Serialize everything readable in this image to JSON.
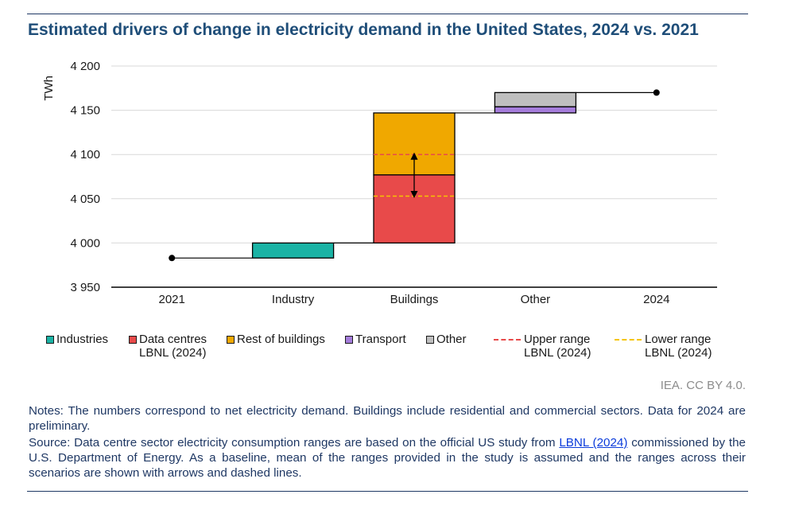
{
  "title": "Estimated drivers of change in electricity demand in the United States, 2024 vs. 2021",
  "colors": {
    "industries": "#1bb3a5",
    "data_centres": "#e84a4a",
    "rest_of_buildings": "#f0a800",
    "transport": "#a57ddb",
    "other": "#bfbfbf",
    "upper_range": "#e84a4a",
    "lower_range": "#f5c400",
    "title": "#1f4e79"
  },
  "chart_data": {
    "type": "bar",
    "subtype": "waterfall",
    "title": "Estimated drivers of change in electricity demand in the United States, 2024 vs. 2021",
    "ylabel": "TWh",
    "xlabel": "",
    "ylim": [
      3950,
      4200
    ],
    "yticks": [
      3950,
      4000,
      4050,
      4100,
      4150,
      4200
    ],
    "ytick_labels": [
      "3 950",
      "4 000",
      "4 050",
      "4 100",
      "4 150",
      "4 200"
    ],
    "categories": [
      "2021",
      "Industry",
      "Buildings",
      "Other",
      "2024"
    ],
    "grid": true,
    "start_value": 3983,
    "end_value": 4170,
    "segments": [
      {
        "category": "Industry",
        "series": "Industries",
        "from": 3983,
        "to": 4000
      },
      {
        "category": "Buildings",
        "series": "Data centres LBNL (2024)",
        "from": 4000,
        "to": 4077
      },
      {
        "category": "Buildings",
        "series": "Rest of buildings",
        "from": 4077,
        "to": 4147
      },
      {
        "category": "Other",
        "series": "Transport",
        "from": 4147,
        "to": 4154
      },
      {
        "category": "Other",
        "series": "Other",
        "from": 4154,
        "to": 4170
      }
    ],
    "ranges": {
      "category": "Buildings",
      "upper": 4100,
      "lower": 4053
    },
    "legend": [
      {
        "key": "industries",
        "label": "Industries"
      },
      {
        "key": "data_centres",
        "label": "Data centres\nLBNL (2024)"
      },
      {
        "key": "rest_of_buildings",
        "label": "Rest of buildings"
      },
      {
        "key": "transport",
        "label": "Transport"
      },
      {
        "key": "other",
        "label": "Other"
      },
      {
        "key": "upper_range",
        "label": "Upper range\nLBNL (2024)"
      },
      {
        "key": "lower_range",
        "label": "Lower range\nLBNL (2024)"
      }
    ],
    "legend_position": "bottom"
  },
  "credit": "IEA. CC BY 4.0.",
  "notes": {
    "notes_text": "Notes: The numbers correspond to net electricity demand. Buildings include residential and commercial sectors. Data for 2024 are preliminary.",
    "source_before": "Source: Data centre sector electricity consumption ranges are based on the official US study from ",
    "source_link": "LBNL (2024)",
    "source_after": " commissioned by the U.S. Department of Energy. As a baseline, mean of the ranges provided in the study is assumed and the ranges across their scenarios are shown with arrows and dashed lines."
  }
}
